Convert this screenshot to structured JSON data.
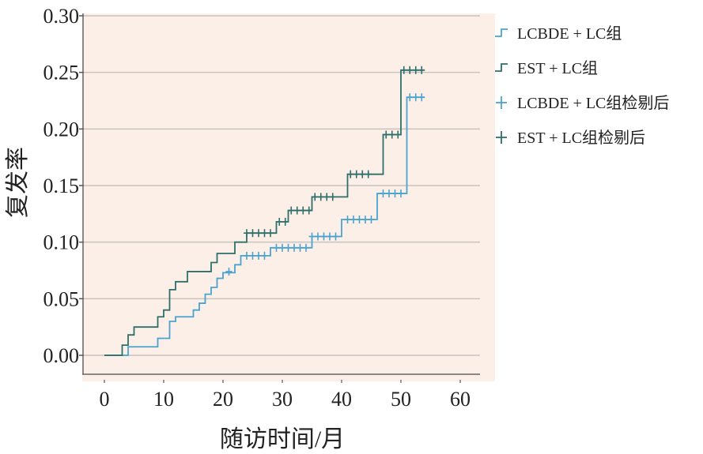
{
  "chart_data": {
    "type": "line",
    "subtype": "kaplan-meier-step",
    "title": "",
    "xlabel": "随访时间/月",
    "ylabel": "复发率",
    "xlim": [
      0,
      60
    ],
    "ylim": [
      0,
      0.3
    ],
    "x_ticks": [
      "0",
      "10",
      "20",
      "30",
      "40",
      "50",
      "60"
    ],
    "y_ticks": [
      "0.00",
      "0.05",
      "0.10",
      "0.15",
      "0.20",
      "0.25",
      "0.30"
    ],
    "grid": "horizontal",
    "legend_position": "right",
    "plot_background": "#fcefe8",
    "series": [
      {
        "name": "LCBDE + LC组",
        "color": "#4aa3cf",
        "steps": [
          [
            0,
            0
          ],
          [
            4,
            0.0075
          ],
          [
            9,
            0.015
          ],
          [
            11,
            0.03
          ],
          [
            12,
            0.034
          ],
          [
            15,
            0.04
          ],
          [
            16,
            0.046
          ],
          [
            17,
            0.054
          ],
          [
            18,
            0.06
          ],
          [
            19,
            0.068
          ],
          [
            20,
            0.073
          ],
          [
            22,
            0.08
          ],
          [
            23,
            0.088
          ],
          [
            28,
            0.095
          ],
          [
            35,
            0.105
          ],
          [
            40,
            0.12
          ],
          [
            46,
            0.143
          ],
          [
            51,
            0.228
          ],
          [
            54,
            0.228
          ]
        ],
        "censored_label": "LCBDE + LC组检剔后",
        "censored": [
          [
            21,
            0.074
          ],
          [
            24,
            0.088
          ],
          [
            25,
            0.088
          ],
          [
            26,
            0.088
          ],
          [
            27,
            0.088
          ],
          [
            29,
            0.095
          ],
          [
            30,
            0.095
          ],
          [
            31,
            0.095
          ],
          [
            32,
            0.095
          ],
          [
            33,
            0.095
          ],
          [
            34,
            0.095
          ],
          [
            35,
            0.105
          ],
          [
            36,
            0.105
          ],
          [
            37,
            0.105
          ],
          [
            38,
            0.105
          ],
          [
            39,
            0.105
          ],
          [
            41,
            0.12
          ],
          [
            42,
            0.12
          ],
          [
            43,
            0.12
          ],
          [
            44,
            0.12
          ],
          [
            45,
            0.12
          ],
          [
            47,
            0.143
          ],
          [
            48,
            0.143
          ],
          [
            49,
            0.143
          ],
          [
            50,
            0.143
          ],
          [
            51.5,
            0.228
          ],
          [
            52.5,
            0.228
          ],
          [
            53.5,
            0.228
          ]
        ]
      },
      {
        "name": "EST + LC组",
        "color": "#2e6f6a",
        "steps": [
          [
            0,
            0
          ],
          [
            3,
            0.009
          ],
          [
            4,
            0.018
          ],
          [
            5,
            0.025
          ],
          [
            9,
            0.034
          ],
          [
            10,
            0.04
          ],
          [
            11,
            0.058
          ],
          [
            12,
            0.065
          ],
          [
            14,
            0.074
          ],
          [
            18,
            0.082
          ],
          [
            19,
            0.09
          ],
          [
            22,
            0.1
          ],
          [
            24,
            0.108
          ],
          [
            29,
            0.118
          ],
          [
            31,
            0.128
          ],
          [
            35,
            0.14
          ],
          [
            41,
            0.16
          ],
          [
            47,
            0.195
          ],
          [
            50,
            0.252
          ],
          [
            54,
            0.252
          ]
        ],
        "censored_label": "EST + LC组检剔后",
        "censored": [
          [
            24,
            0.108
          ],
          [
            25,
            0.108
          ],
          [
            26,
            0.108
          ],
          [
            27,
            0.108
          ],
          [
            28,
            0.108
          ],
          [
            29.5,
            0.118
          ],
          [
            30.5,
            0.118
          ],
          [
            31.5,
            0.128
          ],
          [
            32.5,
            0.128
          ],
          [
            33.5,
            0.128
          ],
          [
            34.5,
            0.128
          ],
          [
            35.5,
            0.14
          ],
          [
            36.5,
            0.14
          ],
          [
            37.5,
            0.14
          ],
          [
            38.5,
            0.14
          ],
          [
            41.5,
            0.16
          ],
          [
            42.5,
            0.16
          ],
          [
            43.5,
            0.16
          ],
          [
            44.5,
            0.16
          ],
          [
            47.5,
            0.195
          ],
          [
            48.5,
            0.195
          ],
          [
            49.5,
            0.195
          ],
          [
            50.5,
            0.252
          ],
          [
            51.5,
            0.252
          ],
          [
            52.5,
            0.252
          ],
          [
            53.5,
            0.252
          ]
        ]
      }
    ]
  }
}
